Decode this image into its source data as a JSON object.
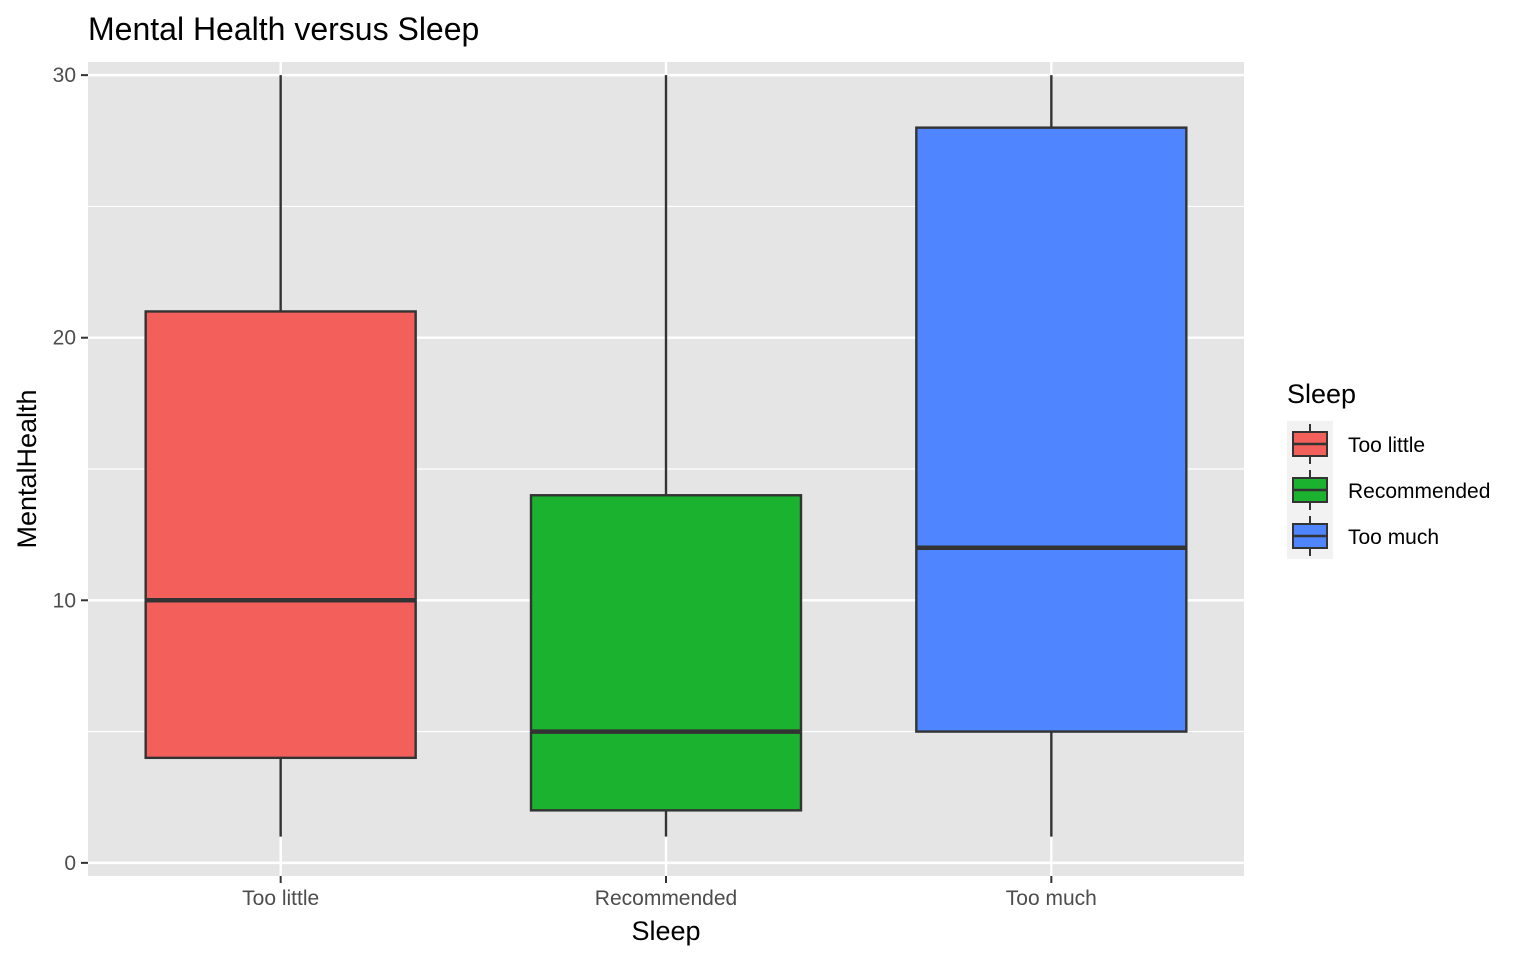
{
  "chart_data": {
    "type": "boxplot",
    "title": "Mental Health versus Sleep",
    "xlabel": "Sleep",
    "ylabel": "MentalHealth",
    "ylim": [
      -0.5,
      30.5
    ],
    "yticks": [
      0,
      10,
      20,
      30
    ],
    "grid": true,
    "legend": {
      "title": "Sleep",
      "placement": "right"
    },
    "categories": [
      "Too little",
      "Recommended",
      "Too much"
    ],
    "colors": [
      "#F35F5B",
      "#1AB22E",
      "#4F86FF"
    ],
    "boxes": [
      {
        "category": "Too little",
        "whisker_low": 1,
        "q1": 4,
        "median": 10,
        "q3": 21,
        "whisker_high": 30
      },
      {
        "category": "Recommended",
        "whisker_low": 1,
        "q1": 2,
        "median": 5,
        "q3": 14,
        "whisker_high": 30
      },
      {
        "category": "Too much",
        "whisker_low": 1,
        "q1": 5,
        "median": 12,
        "q3": 28,
        "whisker_high": 30
      }
    ]
  }
}
